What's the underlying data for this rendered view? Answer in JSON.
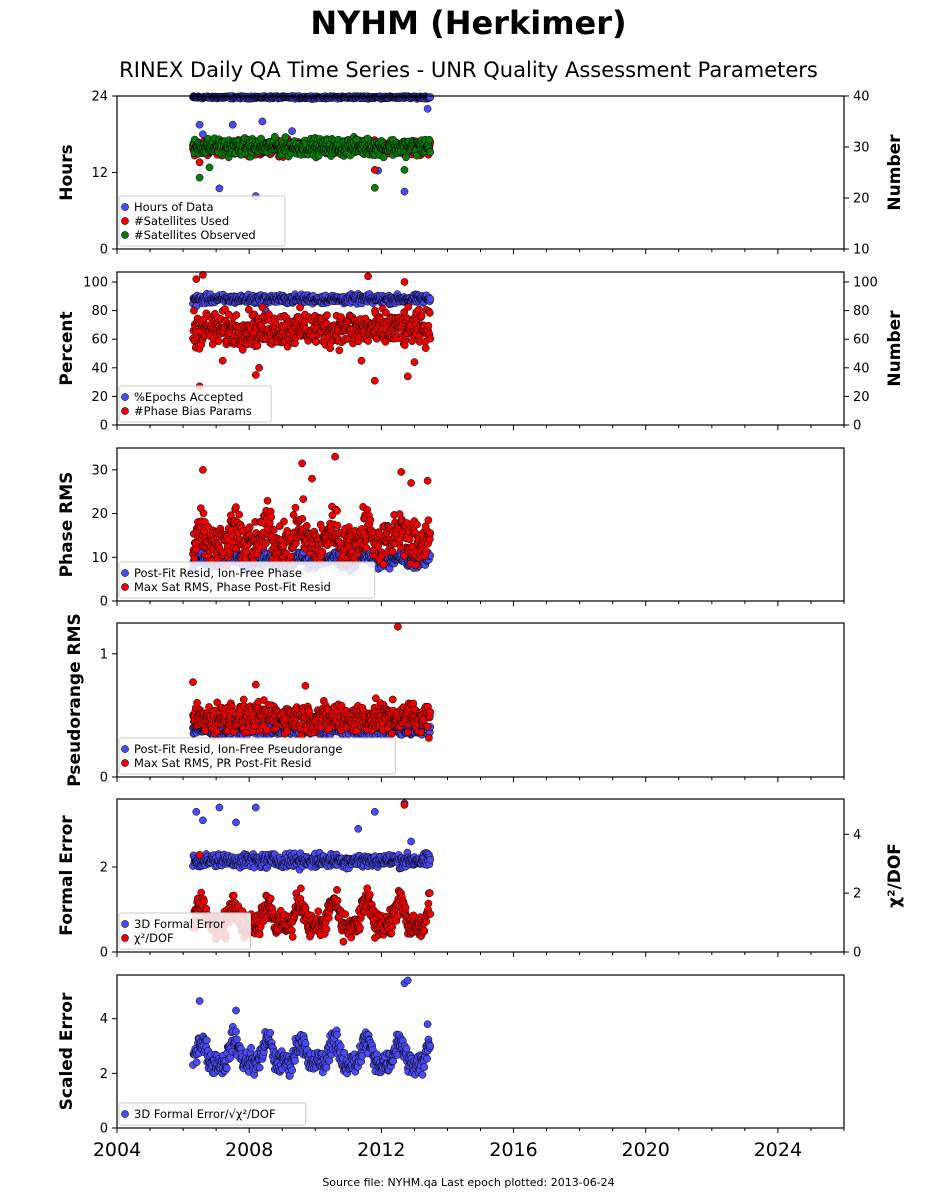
{
  "title": "NYHM (Herkimer)",
  "subtitle": "RINEX Daily QA Time Series - UNR Quality Assessment Parameters",
  "footer": "Source file: NYHM.qa Last epoch plotted: 2013-06-24",
  "colors": {
    "blue": "#4a4af0",
    "red": "#ee0000",
    "green": "#0a7a0a",
    "marker_edge": "#000000"
  },
  "chart_data": [
    {
      "type": "scatter",
      "ylabel": "Hours",
      "ylabel_right": "Number",
      "ylim": [
        0,
        24
      ],
      "yticks": [
        "0",
        "12",
        "24"
      ],
      "ylim_right": [
        10,
        40
      ],
      "yticks_right": [
        "10",
        "20",
        "30",
        "40"
      ],
      "xlim": [
        2004,
        2026
      ],
      "legend_position": "lower-left",
      "legend": [
        "Hours of Data",
        "#Satellites Used",
        "#Satellites Observed"
      ],
      "series": [
        {
          "name": "Hours of Data",
          "axis": "left",
          "color": "#4a4af0",
          "base": 23.8,
          "noise": 0.1,
          "outliers": [
            [
              2006.5,
              19.5
            ],
            [
              2006.6,
              18
            ],
            [
              2006.8,
              17
            ],
            [
              2007.1,
              9.5
            ],
            [
              2007.5,
              19.5
            ],
            [
              2008.2,
              8.3
            ],
            [
              2008.4,
              20
            ],
            [
              2009.3,
              18.5
            ],
            [
              2011.9,
              12.3
            ],
            [
              2012.7,
              9
            ],
            [
              2013.4,
              22
            ]
          ]
        },
        {
          "name": "#Satellites Used",
          "axis": "right",
          "color": "#ee0000",
          "base": 29.8,
          "noise": 0.7,
          "outliers": [
            [
              2006.5,
              27
            ],
            [
              2008.2,
              28.5
            ],
            [
              2011.8,
              25.5
            ],
            [
              2012.7,
              29
            ]
          ]
        },
        {
          "name": "#Satellites Observed",
          "axis": "right",
          "color": "#0a7a0a",
          "base": 30.0,
          "noise": 0.8,
          "outliers": [
            [
              2006.5,
              24
            ],
            [
              2006.8,
              26
            ],
            [
              2011.8,
              22
            ],
            [
              2012.7,
              25.5
            ]
          ]
        }
      ]
    },
    {
      "type": "scatter",
      "ylabel": "Percent",
      "ylabel_right": "Number",
      "ylim": [
        0,
        107
      ],
      "yticks": [
        "0",
        "20",
        "40",
        "60",
        "80",
        "100"
      ],
      "ylim_right": [
        0,
        107
      ],
      "yticks_right": [
        "0",
        "20",
        "40",
        "60",
        "80",
        "100"
      ],
      "xlim": [
        2004,
        2026
      ],
      "legend_position": "lower-left",
      "legend": [
        "%Epochs Accepted",
        "#Phase Bias Params"
      ],
      "series": [
        {
          "name": "%Epochs Accepted",
          "axis": "left",
          "color": "#4a4af0",
          "base": 88,
          "noise": 1.5,
          "outliers": [
            [
              2006.4,
              83
            ],
            [
              2008.5,
              80
            ]
          ]
        },
        {
          "name": "#Phase Bias Params",
          "axis": "right",
          "color": "#ee0000",
          "base": 67,
          "noise": 6,
          "outliers": [
            [
              2006.4,
              102
            ],
            [
              2006.5,
              27
            ],
            [
              2006.6,
              105
            ],
            [
              2007.2,
              45
            ],
            [
              2008.2,
              35
            ],
            [
              2008.3,
              40
            ],
            [
              2011.4,
              45
            ],
            [
              2011.6,
              104
            ],
            [
              2011.8,
              31
            ],
            [
              2012.7,
              100
            ],
            [
              2012.8,
              34
            ],
            [
              2013.0,
              44
            ]
          ]
        }
      ]
    },
    {
      "type": "scatter",
      "ylabel": "Phase RMS",
      "ylim": [
        0,
        35
      ],
      "yticks": [
        "0",
        "10",
        "20",
        "30"
      ],
      "xlim": [
        2004,
        2026
      ],
      "legend_position": "lower-left",
      "legend": [
        "Post-Fit Resid, Ion-Free Phase",
        "Max Sat RMS, Phase Post-Fit Resid"
      ],
      "series": [
        {
          "name": "Post-Fit Resid, Ion-Free Phase",
          "axis": "left",
          "color": "#4a4af0",
          "base": 9,
          "noise": 0.8,
          "seasonal": 1.5,
          "outliers": []
        },
        {
          "name": "Max Sat RMS, Phase Post-Fit Resid",
          "axis": "left",
          "color": "#ee0000",
          "base": 13,
          "noise": 2.5,
          "seasonal": 5,
          "outliers": [
            [
              2006.6,
              30
            ],
            [
              2009.6,
              31.5
            ],
            [
              2009.9,
              28
            ],
            [
              2010.6,
              33
            ],
            [
              2012.6,
              29.5
            ],
            [
              2012.9,
              27
            ],
            [
              2013.4,
              27.5
            ]
          ]
        }
      ]
    },
    {
      "type": "scatter",
      "ylabel": "Pseudorange RMS",
      "ylim": [
        0,
        1.25
      ],
      "yticks": [
        "0",
        "1"
      ],
      "xlim": [
        2004,
        2026
      ],
      "legend_position": "lower-left",
      "legend": [
        "Post-Fit Resid, Ion-Free Pseudorange",
        "Max Sat RMS, PR Post-Fit Resid"
      ],
      "series": [
        {
          "name": "Post-Fit Resid, Ion-Free Pseudorange",
          "axis": "left",
          "color": "#4a4af0",
          "base": 0.38,
          "noise": 0.02,
          "outliers": []
        },
        {
          "name": "Max Sat RMS, PR Post-Fit Resid",
          "axis": "left",
          "color": "#ee0000",
          "base": 0.48,
          "noise": 0.06,
          "outliers": [
            [
              2006.3,
              0.77
            ],
            [
              2008.2,
              0.75
            ],
            [
              2009.7,
              0.74
            ],
            [
              2012.5,
              1.22
            ]
          ]
        }
      ]
    },
    {
      "type": "scatter",
      "ylabel": "Formal Error",
      "ylabel_right": "χ²/DOF",
      "ylim": [
        0,
        3.6
      ],
      "yticks": [
        "0",
        "2"
      ],
      "ylim_right": [
        0,
        5.2
      ],
      "yticks_right": [
        "0",
        "2",
        "4"
      ],
      "xlim": [
        2004,
        2026
      ],
      "legend_position": "lower-left",
      "legend": [
        "3D Formal Error",
        "χ²/DOF"
      ],
      "series": [
        {
          "name": "3D Formal Error",
          "axis": "left",
          "color": "#4a4af0",
          "base": 2.15,
          "noise": 0.08,
          "outliers": [
            [
              2006.4,
              3.3
            ],
            [
              2006.6,
              3.1
            ],
            [
              2007.1,
              3.4
            ],
            [
              2007.6,
              3.05
            ],
            [
              2008.2,
              3.4
            ],
            [
              2011.3,
              2.9
            ],
            [
              2011.8,
              3.3
            ],
            [
              2012.7,
              3.5
            ],
            [
              2012.9,
              2.6
            ]
          ]
        },
        {
          "name": "χ²/DOF",
          "axis": "right",
          "color": "#ee0000",
          "base": 0.9,
          "noise": 0.2,
          "seasonal": 1.0,
          "outliers": [
            [
              2012.7,
              5.0
            ],
            [
              2006.5,
              3.3
            ]
          ]
        }
      ]
    },
    {
      "type": "scatter",
      "ylabel": "Scaled Error",
      "xlabel": "",
      "ylim": [
        0,
        5.6
      ],
      "yticks": [
        "0",
        "2",
        "4"
      ],
      "xlim": [
        2004,
        2026
      ],
      "xticks": [
        "2004",
        "2008",
        "2012",
        "2016",
        "2020",
        "2024"
      ],
      "legend_position": "lower-left",
      "legend": [
        "3D Formal Error/√χ²/DOF"
      ],
      "series": [
        {
          "name": "3D Formal Error/√χ²/DOF",
          "axis": "left",
          "color": "#4a4af0",
          "base": 2.4,
          "noise": 0.2,
          "seasonal": 1.0,
          "outliers": [
            [
              2006.5,
              4.65
            ],
            [
              2007.6,
              4.3
            ],
            [
              2012.7,
              5.3
            ],
            [
              2012.8,
              5.4
            ],
            [
              2013.4,
              3.8
            ]
          ]
        }
      ]
    }
  ],
  "data_span": [
    2006.3,
    2013.48
  ]
}
